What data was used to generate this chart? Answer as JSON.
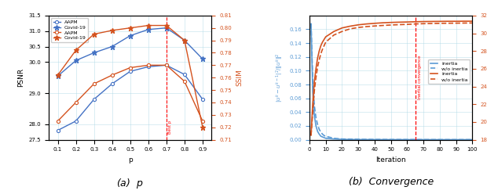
{
  "left": {
    "p_values": [
      0.1,
      0.2,
      0.3,
      0.4,
      0.5,
      0.6,
      0.7,
      0.8,
      0.9
    ],
    "psnr_aapm": [
      27.8,
      28.1,
      28.8,
      29.3,
      29.7,
      29.85,
      29.9,
      29.6,
      28.8
    ],
    "psnr_covid19": [
      29.55,
      30.05,
      30.3,
      30.5,
      30.85,
      31.05,
      31.1,
      30.7,
      30.1
    ],
    "ssim_aapm": [
      0.725,
      0.74,
      0.755,
      0.762,
      0.768,
      0.77,
      0.77,
      0.757,
      0.725
    ],
    "ssim_covid19": [
      0.762,
      0.782,
      0.795,
      0.798,
      0.8,
      0.802,
      0.802,
      0.79,
      0.72
    ],
    "psnr_ylim": [
      27.5,
      31.5
    ],
    "ssim_ylim": [
      0.71,
      0.81
    ],
    "best_p": 0.7,
    "color_blue": "#4472C4",
    "color_orange": "#D4521E",
    "xlabel": "p",
    "ylabel_left": "PSNR",
    "ylabel_right": "SSIM",
    "caption": "(a)  $p$"
  },
  "right": {
    "iterations": [
      1,
      2,
      3,
      4,
      5,
      6,
      7,
      8,
      9,
      10,
      15,
      20,
      25,
      30,
      35,
      40,
      45,
      50,
      55,
      60,
      65,
      70,
      75,
      80,
      85,
      90,
      95,
      100
    ],
    "conv_inertia": [
      0.168,
      0.07,
      0.035,
      0.02,
      0.012,
      0.008,
      0.005,
      0.004,
      0.003,
      0.002,
      0.001,
      0.0005,
      0.0003,
      0.0002,
      0.00015,
      0.0001,
      8e-05,
      6e-05,
      5e-05,
      4e-05,
      3e-05,
      2e-05,
      2e-05,
      1e-05,
      1e-05,
      1e-05,
      1e-05,
      1e-05
    ],
    "conv_wo_inertia": [
      0.168,
      0.09,
      0.05,
      0.032,
      0.022,
      0.015,
      0.011,
      0.008,
      0.006,
      0.005,
      0.002,
      0.001,
      0.0007,
      0.0005,
      0.0004,
      0.0003,
      0.00025,
      0.0002,
      0.00018,
      0.00015,
      0.00012,
      0.0001,
      9e-05,
      8e-05,
      7e-05,
      6e-05,
      5e-05,
      4e-05
    ],
    "psnr_inertia": [
      18.5,
      22.0,
      24.5,
      26.0,
      27.2,
      28.0,
      28.6,
      29.0,
      29.3,
      29.6,
      30.2,
      30.6,
      30.8,
      30.95,
      31.05,
      31.12,
      31.18,
      31.22,
      31.25,
      31.27,
      31.3,
      31.32,
      31.33,
      31.34,
      31.35,
      31.35,
      31.36,
      31.36
    ],
    "psnr_wo_inertia": [
      18.5,
      21.0,
      23.5,
      25.0,
      26.2,
      27.0,
      27.7,
      28.2,
      28.6,
      29.0,
      29.8,
      30.2,
      30.5,
      30.65,
      30.75,
      30.82,
      30.88,
      30.93,
      30.97,
      31.0,
      31.05,
      31.08,
      31.1,
      31.12,
      31.13,
      31.14,
      31.15,
      31.16
    ],
    "inertia_converge_iter": 65,
    "conv_ylim": [
      0.0,
      0.18
    ],
    "conv_yticks": [
      0.0,
      0.02,
      0.04,
      0.06,
      0.08,
      0.1,
      0.12,
      0.14,
      0.16
    ],
    "psnr_ylim": [
      18,
      32
    ],
    "psnr_yticks": [
      18,
      20,
      22,
      24,
      26,
      28,
      30,
      32
    ],
    "xlim": [
      0,
      100
    ],
    "xticks": [
      0,
      10,
      20,
      30,
      40,
      50,
      60,
      70,
      80,
      90,
      100
    ],
    "color_blue": "#5B9BD5",
    "color_orange": "#D4521E",
    "xlabel": "Iteration",
    "ylabel_left": "$|u^k - u^{k-1}|^2 / \\|u^k\\|^2$",
    "ylabel_right": "PSNR",
    "caption": "(b)  Convergence"
  }
}
